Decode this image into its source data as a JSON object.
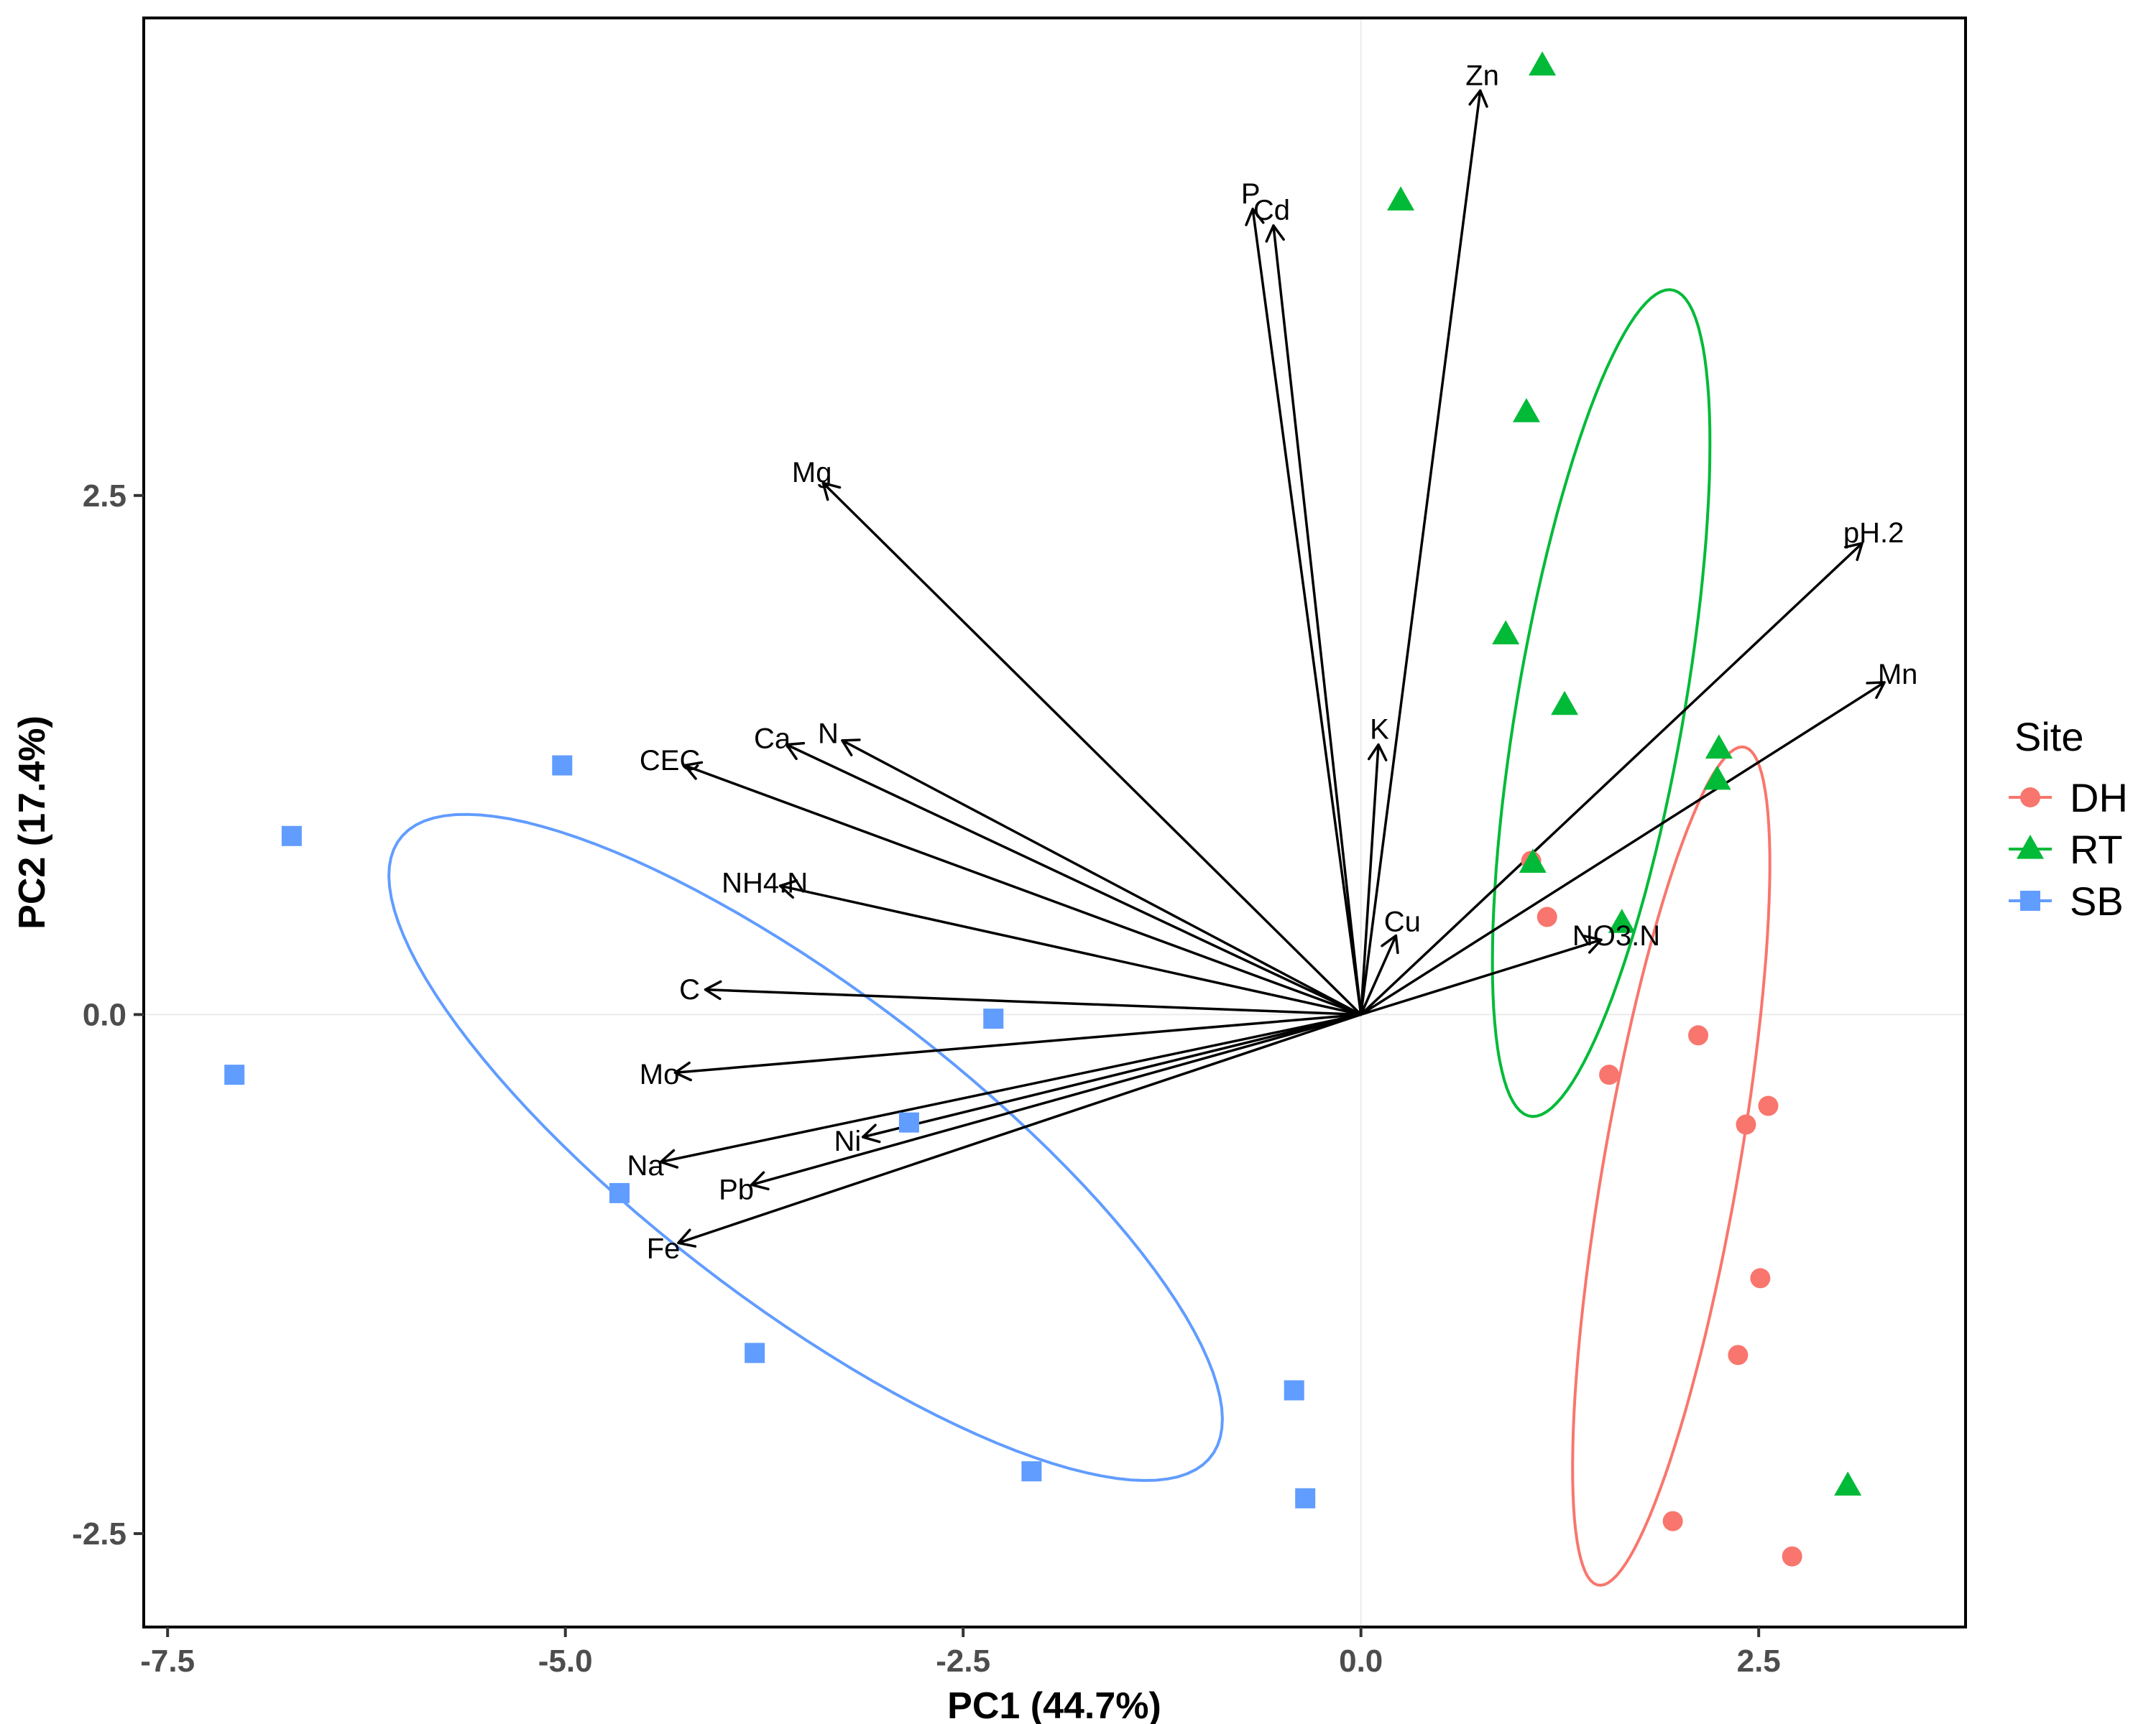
{
  "chart_data": {
    "type": "scatter",
    "subtype": "pca-biplot",
    "xlabel": "PC1 (44.7%)",
    "ylabel": "PC2 (17.4%)",
    "xlim": [
      -7.65,
      3.8
    ],
    "ylim": [
      -2.95,
      4.8
    ],
    "xticks": [
      -7.5,
      -5.0,
      -2.5,
      0.0,
      2.5
    ],
    "xtick_labels": [
      "-7.5",
      "-5.0",
      "-2.5",
      "0.0",
      "2.5"
    ],
    "yticks": [
      -2.5,
      0.0,
      2.5
    ],
    "ytick_labels": [
      "-2.5",
      "0.0",
      "2.5"
    ],
    "grid": "zero-lines only",
    "legend": {
      "title": "Site",
      "position": "right",
      "entries": [
        {
          "name": "DH",
          "shape": "circle",
          "color": "#F8766D"
        },
        {
          "name": "RT",
          "shape": "triangle",
          "color": "#00BA38"
        },
        {
          "name": "SB",
          "shape": "square",
          "color": "#619CFF"
        }
      ]
    },
    "series": [
      {
        "name": "DH",
        "shape": "circle",
        "color": "#F8766D",
        "points": [
          [
            1.07,
            0.74
          ],
          [
            1.17,
            0.47
          ],
          [
            1.56,
            -0.29
          ],
          [
            2.12,
            -0.1
          ],
          [
            2.42,
            -0.53
          ],
          [
            2.56,
            -0.44
          ],
          [
            2.51,
            -1.27
          ],
          [
            2.37,
            -1.64
          ],
          [
            1.96,
            -2.44
          ],
          [
            2.71,
            -2.61
          ]
        ],
        "ellipse": {
          "center": [
            1.95,
            -0.73
          ],
          "semi_axes": [
            2.07,
            0.42
          ],
          "angle_deg": 77
        }
      },
      {
        "name": "RT",
        "shape": "triangle",
        "color": "#00BA38",
        "points": [
          [
            1.14,
            4.57
          ],
          [
            0.25,
            3.92
          ],
          [
            1.04,
            2.9
          ],
          [
            0.91,
            1.83
          ],
          [
            1.28,
            1.49
          ],
          [
            2.25,
            1.28
          ],
          [
            2.24,
            1.13
          ],
          [
            1.08,
            0.73
          ],
          [
            1.64,
            0.44
          ],
          [
            3.06,
            -2.27
          ]
        ],
        "ellipse": {
          "center": [
            1.51,
            1.5
          ],
          "semi_axes": [
            2.04,
            0.52
          ],
          "angle_deg": 77
        }
      },
      {
        "name": "SB",
        "shape": "square",
        "color": "#619CFF",
        "points": [
          [
            -5.02,
            1.2
          ],
          [
            -6.72,
            0.86
          ],
          [
            -7.08,
            -0.29
          ],
          [
            -2.31,
            -0.02
          ],
          [
            -2.84,
            -0.52
          ],
          [
            -4.66,
            -0.86
          ],
          [
            -3.81,
            -1.63
          ],
          [
            -0.42,
            -1.81
          ],
          [
            -2.07,
            -2.2
          ],
          [
            -0.35,
            -2.33
          ]
        ],
        "ellipse": {
          "center": [
            -3.49,
            -0.64
          ],
          "semi_axes": [
            2.96,
            0.82
          ],
          "angle_deg": -29
        }
      }
    ],
    "loadings": [
      {
        "name": "Zn",
        "x": 0.75,
        "y": 4.45
      },
      {
        "name": "P",
        "x": -0.68,
        "y": 3.88
      },
      {
        "name": "Cd",
        "x": -0.55,
        "y": 3.8
      },
      {
        "name": "Mg",
        "x": -3.38,
        "y": 2.56
      },
      {
        "name": "pH.2",
        "x": 3.15,
        "y": 2.27
      },
      {
        "name": "Mn",
        "x": 3.29,
        "y": 1.6
      },
      {
        "name": "K",
        "x": 0.11,
        "y": 1.3
      },
      {
        "name": "N",
        "x": -3.26,
        "y": 1.32
      },
      {
        "name": "Ca",
        "x": -3.61,
        "y": 1.3
      },
      {
        "name": "CEC",
        "x": -4.25,
        "y": 1.2
      },
      {
        "name": "NH4.N",
        "x": -3.65,
        "y": 0.62
      },
      {
        "name": "Cu",
        "x": 0.22,
        "y": 0.38
      },
      {
        "name": "NO3.N",
        "x": 1.51,
        "y": 0.36
      },
      {
        "name": "C",
        "x": -4.12,
        "y": 0.12
      },
      {
        "name": "Mo",
        "x": -4.31,
        "y": -0.28
      },
      {
        "name": "Ni",
        "x": -3.13,
        "y": -0.59
      },
      {
        "name": "Pb",
        "x": -3.83,
        "y": -0.82
      },
      {
        "name": "Na",
        "x": -4.4,
        "y": -0.71
      },
      {
        "name": "Fe",
        "x": -4.29,
        "y": -1.1
      }
    ]
  }
}
